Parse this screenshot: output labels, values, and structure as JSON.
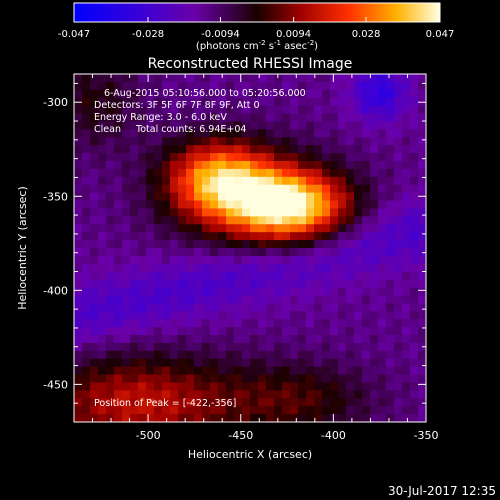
{
  "chart_data": {
    "type": "heatmap",
    "title": "Reconstructed RHESSI Image",
    "xlabel": "Heliocentric X (arcsec)",
    "ylabel": "Heliocentric Y (arcsec)",
    "xlim": [
      -540,
      -350
    ],
    "ylim": [
      -470,
      -285
    ],
    "x_ticks": [
      "-500",
      "-450",
      "-400",
      "-350"
    ],
    "y_ticks": [
      "-300",
      "-350",
      "-400",
      "-450"
    ],
    "colorbar": {
      "ticks": [
        "-0.047",
        "-0.028",
        "-0.0094",
        "0.0094",
        "0.028",
        "0.047"
      ],
      "range": [
        -0.047,
        0.047
      ],
      "unit_label": "(photons cm",
      "unit_sup1": "-2",
      "unit_mid": " s",
      "unit_sup2": "-1",
      "unit_mid2": " asec",
      "unit_sup3": "-2",
      "unit_end": ")"
    },
    "info_lines": [
      "6-Aug-2015 05:10:56.000 to 05:20:56.000",
      "Detectors: 3F 5F 6F 7F 8F 9F, Att 0",
      "Energy Range: 3.0 - 6.0 keV",
      "Clean     Total counts: 6.94E+04"
    ],
    "peak_label": "Position of Peak = [-422,-356]",
    "peak": [
      -422,
      -356
    ],
    "sources": [
      {
        "x": -422,
        "y": -356,
        "intensity": 0.047,
        "sx": 22,
        "sy": 13
      },
      {
        "x": -463,
        "y": -340,
        "intensity": 0.035,
        "sx": 19,
        "sy": 14
      },
      {
        "x": -445,
        "y": -350,
        "intensity": 0.026,
        "sx": 30,
        "sy": 18
      },
      {
        "x": -505,
        "y": -460,
        "intensity": 0.028,
        "sx": 40,
        "sy": 18
      },
      {
        "x": -418,
        "y": -458,
        "intensity": 0.015,
        "sx": 28,
        "sy": 14
      },
      {
        "x": -530,
        "y": -300,
        "intensity": 0.012,
        "sx": 18,
        "sy": 18
      }
    ],
    "background": -0.013
  },
  "footer_date": "30-Jul-2017 12:35"
}
